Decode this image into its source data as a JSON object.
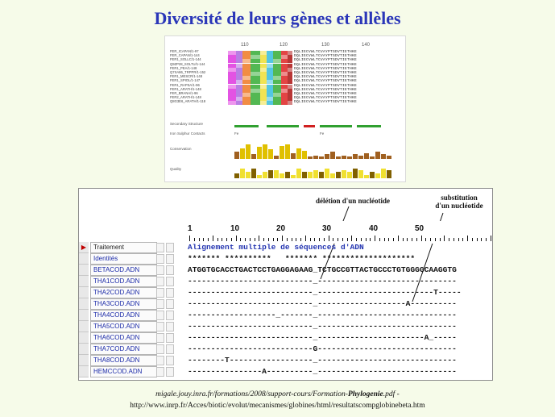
{
  "title": "Diversité de leurs gènes et allèles",
  "top_alignment": {
    "ruler": [
      "110",
      "120",
      "130",
      "140"
    ],
    "names": [
      "FER_ICAPAN/1-97",
      "FER_CAPAN/1-144",
      "FER1_SOLLC/1-144",
      "Q9ZP28_SOLTU/1-144",
      "FER1_PEA/1-148",
      "Q7XA86_TRPPR/1-152",
      "FER1_MESCR/1-148",
      "FER1_SPIOL/1-147",
      "FER1_RAPSA/1-96",
      "FER1_ARATH/1-148",
      "FER_BRANA/1-96",
      "FER2_ARATH/1-148",
      "Q8G3E6_ARATH/1-118"
    ],
    "seq_text": "DQLIECVWLTCVAYPTSDVTIETHKE",
    "track_labels": [
      "Secondary Structure",
      "Iron Sulphur Contacts",
      "Conservation",
      "Quality"
    ],
    "track_markers": [
      "Fe",
      "Fe"
    ]
  },
  "ruler": {
    "numbers": [
      "1",
      "10",
      "20",
      "30",
      "40",
      "50"
    ]
  },
  "annotations": {
    "deletion": "délétion d'un nucléotide",
    "substitution_line1": "substitution",
    "substitution_line2": "d'un nucléotide"
  },
  "rows": [
    {
      "name": "Traitement",
      "marker": "▶",
      "seq": "Alignement multiple de séquences d'ADN"
    },
    {
      "name": "Identités",
      "marker": "",
      "seq": "******* **********   ******* ********************"
    },
    {
      "name": "BETACOD.ADN",
      "marker": "",
      "seq": "ATGGTGCACCTGACTCCTGAGGAGAAG_TCTGCCGTTACTGCCCTGTGGGGCAAGGTG"
    },
    {
      "name": "THA1COD.ADN",
      "marker": "",
      "seq": "---------------------------_------------------------------"
    },
    {
      "name": "THA2COD.ADN",
      "marker": "",
      "seq": "---------------------------_-------------------------T-----"
    },
    {
      "name": "THA3COD.ADN",
      "marker": "",
      "seq": "---------------------------_-------------------A----------"
    },
    {
      "name": "THA4COD.ADN",
      "marker": "",
      "seq": "-------------------_-------_------------------------------"
    },
    {
      "name": "THA5COD.ADN",
      "marker": "",
      "seq": "---------------------------_------------------------------"
    },
    {
      "name": "THA6COD.ADN",
      "marker": "",
      "seq": "---------------------------_-----------------------A_-----"
    },
    {
      "name": "THA7COD.ADN",
      "marker": "",
      "seq": "---------------------------G------------------------------"
    },
    {
      "name": "THA8COD.ADN",
      "marker": "",
      "seq": "--------T------------------_------------------------------"
    },
    {
      "name": "HEMCCOD.ADN",
      "marker": "",
      "seq": "----------------A----------_------------------------------"
    }
  ],
  "caption": {
    "line1_prefix": "migale.jouy.inra.fr/formations/2008/support-cours/Formation-",
    "line1_bold": "Phylogenie",
    "line1_suffix": ".pdf -",
    "line2": "http://www.inrp.fr/Acces/biotic/evolut/mecanismes/globines/html/resultatscompglobinebeta.htm"
  },
  "colors": {
    "title": "#2a36b8",
    "background": "#f6fbe9",
    "row_name_text": "#1b2aa8",
    "traitement_text": "#2233b0"
  }
}
